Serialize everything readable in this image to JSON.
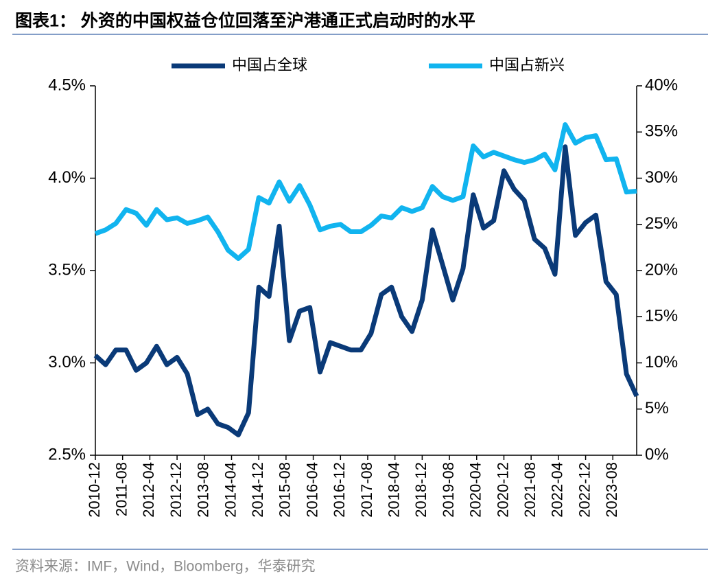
{
  "chart_data": {
    "type": "line",
    "title": "图表1：  外资的中国权益仓位回落至沪港通正式启动时的水平",
    "source": "资料来源：IMF，Wind，Bloomberg，华泰研究",
    "x": [
      "2010-12",
      "2011-03",
      "2011-06",
      "2011-09",
      "2011-12",
      "2012-03",
      "2012-06",
      "2012-09",
      "2012-12",
      "2013-03",
      "2013-06",
      "2013-09",
      "2013-12",
      "2014-03",
      "2014-06",
      "2014-09",
      "2014-12",
      "2015-03",
      "2015-06",
      "2015-09",
      "2015-12",
      "2016-03",
      "2016-06",
      "2016-09",
      "2016-12",
      "2017-03",
      "2017-06",
      "2017-09",
      "2017-12",
      "2018-03",
      "2018-06",
      "2018-09",
      "2018-12",
      "2019-03",
      "2019-06",
      "2019-09",
      "2019-12",
      "2020-03",
      "2020-06",
      "2020-09",
      "2020-12",
      "2021-03",
      "2021-06",
      "2021-09",
      "2021-12",
      "2022-03",
      "2022-06",
      "2022-09",
      "2022-12",
      "2023-03",
      "2023-06",
      "2023-09",
      "2023-12",
      "2024-03"
    ],
    "xlim": [
      "2010-12",
      "2024-03"
    ],
    "xticks": [
      "2010-12",
      "2011-08",
      "2012-04",
      "2012-12",
      "2013-08",
      "2014-04",
      "2014-12",
      "2015-08",
      "2016-04",
      "2016-12",
      "2017-08",
      "2018-04",
      "2018-12",
      "2019-08",
      "2020-04",
      "2020-12",
      "2021-08",
      "2022-04",
      "2022-12",
      "2023-08"
    ],
    "series": [
      {
        "name": "中国占全球",
        "color": "#0a3a78",
        "axis": "y",
        "values": [
          3.04,
          2.99,
          3.07,
          3.07,
          2.96,
          3.0,
          3.09,
          2.99,
          3.03,
          2.94,
          2.72,
          2.75,
          2.67,
          2.65,
          2.61,
          2.73,
          3.41,
          3.36,
          3.74,
          3.12,
          3.28,
          3.3,
          2.95,
          3.11,
          3.09,
          3.07,
          3.07,
          3.16,
          3.37,
          3.41,
          3.25,
          3.17,
          3.34,
          3.72,
          3.53,
          3.34,
          3.51,
          3.91,
          3.73,
          3.77,
          4.04,
          3.94,
          3.88,
          3.67,
          3.62,
          3.48,
          4.17,
          3.69,
          3.76,
          3.8,
          3.44,
          3.37,
          2.94,
          2.82
        ]
      },
      {
        "name": "中国占新兴",
        "color": "#11b4ef",
        "axis": "y2",
        "values": [
          24.0,
          24.4,
          25.1,
          26.6,
          26.2,
          24.9,
          26.6,
          25.5,
          25.7,
          25.1,
          25.4,
          25.8,
          24.2,
          22.2,
          21.3,
          22.3,
          27.9,
          27.3,
          29.6,
          27.5,
          29.2,
          27.1,
          24.4,
          24.8,
          25.0,
          24.2,
          24.2,
          24.9,
          25.9,
          25.7,
          26.8,
          26.4,
          26.8,
          29.1,
          28.0,
          27.6,
          28.0,
          33.5,
          32.3,
          32.8,
          32.4,
          32.0,
          31.7,
          32.0,
          32.6,
          30.9,
          35.8,
          33.8,
          34.4,
          34.6,
          32.0,
          32.1,
          28.5,
          28.6
        ]
      }
    ],
    "ylim": [
      2.5,
      4.5
    ],
    "yticks": [
      {
        "value": 2.5,
        "label": "2.5%"
      },
      {
        "value": 3.0,
        "label": "3.0%"
      },
      {
        "value": 3.5,
        "label": "3.5%"
      },
      {
        "value": 4.0,
        "label": "4.0%"
      },
      {
        "value": 4.5,
        "label": "4.5%"
      }
    ],
    "y2lim": [
      0,
      40
    ],
    "y2ticks": [
      {
        "value": 0,
        "label": "0%"
      },
      {
        "value": 5,
        "label": "5%"
      },
      {
        "value": 10,
        "label": "10%"
      },
      {
        "value": 15,
        "label": "15%"
      },
      {
        "value": 20,
        "label": "20%"
      },
      {
        "value": 25,
        "label": "25%"
      },
      {
        "value": 30,
        "label": "30%"
      },
      {
        "value": 35,
        "label": "35%"
      },
      {
        "value": 40,
        "label": "40%"
      }
    ],
    "legend": "top"
  }
}
